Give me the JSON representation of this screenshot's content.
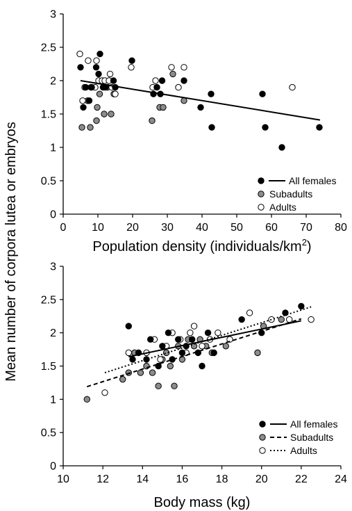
{
  "ylabel_shared": "Mean number of corpora lutea or embryos",
  "colors": {
    "all_females": "#000000",
    "subadults": "#8c8c8c",
    "adults": "#ffffff",
    "outline": "#000000"
  },
  "chart_data": [
    {
      "type": "scatter",
      "xlabel": "Population density (individuals/km²)",
      "xlim": [
        0,
        80
      ],
      "ylim": [
        0,
        3
      ],
      "xticks": [
        0,
        10,
        20,
        30,
        40,
        50,
        60,
        70,
        80
      ],
      "yticks": [
        0,
        0.5,
        1,
        1.5,
        2,
        2.5,
        3
      ],
      "ytick_labels": [
        "0",
        "0.5",
        "1",
        "1.5",
        "2",
        "2.5",
        "3"
      ],
      "legend_position": "bottom-right",
      "series": [
        {
          "name": "All females",
          "marker": "filled-black",
          "line": "solid",
          "points": [
            [
              5,
              2.2
            ],
            [
              5.8,
              1.6
            ],
            [
              6.5,
              1.9
            ],
            [
              7.5,
              1.7
            ],
            [
              8.2,
              1.9
            ],
            [
              9.5,
              2.2
            ],
            [
              10.2,
              2.1
            ],
            [
              10.6,
              2.4
            ],
            [
              11.5,
              1.9
            ],
            [
              12.2,
              1.9
            ],
            [
              14.5,
              2.0
            ],
            [
              15.0,
              1.9
            ],
            [
              19.8,
              2.3
            ],
            [
              26.0,
              1.8
            ],
            [
              27.0,
              1.9
            ],
            [
              28.0,
              1.8
            ],
            [
              28.5,
              2.0
            ],
            [
              34.8,
              2.0
            ],
            [
              39.6,
              1.6
            ],
            [
              42.6,
              1.8
            ],
            [
              42.8,
              1.3
            ],
            [
              57.4,
              1.8
            ],
            [
              58.2,
              1.3
            ],
            [
              63.0,
              1.0
            ],
            [
              73.8,
              1.3
            ]
          ],
          "trend": {
            "x": [
              5,
              74
            ],
            "y": [
              2.0,
              1.41
            ]
          }
        },
        {
          "name": "Subadults",
          "marker": "filled-gray",
          "points": [
            [
              5.4,
              1.3
            ],
            [
              7.0,
              1.7
            ],
            [
              7.8,
              1.3
            ],
            [
              9.6,
              1.4
            ],
            [
              9.8,
              1.6
            ],
            [
              10.5,
              1.8
            ],
            [
              11.8,
              1.5
            ],
            [
              12.8,
              1.9
            ],
            [
              13.8,
              1.5
            ],
            [
              14.6,
              1.8
            ],
            [
              25.6,
              1.4
            ],
            [
              27.8,
              1.6
            ],
            [
              28.8,
              1.6
            ],
            [
              31.6,
              2.1
            ],
            [
              34.8,
              1.7
            ]
          ]
        },
        {
          "name": "Adults",
          "marker": "open",
          "points": [
            [
              4.8,
              2.4
            ],
            [
              5.6,
              1.7
            ],
            [
              6.2,
              1.9
            ],
            [
              7.2,
              2.3
            ],
            [
              8.0,
              1.9
            ],
            [
              9.2,
              1.9
            ],
            [
              9.6,
              2.3
            ],
            [
              10.2,
              2.0
            ],
            [
              11.2,
              2.0
            ],
            [
              12.0,
              2.0
            ],
            [
              13.2,
              2.0
            ],
            [
              13.5,
              2.1
            ],
            [
              14.0,
              1.9
            ],
            [
              15.0,
              1.8
            ],
            [
              19.6,
              2.2
            ],
            [
              25.8,
              1.9
            ],
            [
              26.6,
              2.0
            ],
            [
              31.2,
              2.2
            ],
            [
              33.2,
              1.9
            ],
            [
              34.8,
              2.2
            ],
            [
              66.0,
              1.9
            ]
          ]
        }
      ]
    },
    {
      "type": "scatter",
      "xlabel": "Body mass (kg)",
      "xlim": [
        10,
        24
      ],
      "ylim": [
        0,
        3
      ],
      "xticks": [
        10,
        12,
        14,
        16,
        18,
        20,
        22,
        24
      ],
      "yticks": [
        0,
        0.5,
        1,
        1.5,
        2,
        2.5,
        3
      ],
      "ytick_labels": [
        "0",
        "0.5",
        "1",
        "1.5",
        "2",
        "2.5",
        "3"
      ],
      "legend_position": "bottom-right",
      "series": [
        {
          "name": "All females",
          "marker": "filled-black",
          "line": "solid",
          "points": [
            [
              13.3,
              2.1
            ],
            [
              13.5,
              1.6
            ],
            [
              13.8,
              1.7
            ],
            [
              14.2,
              1.6
            ],
            [
              14.4,
              1.9
            ],
            [
              14.8,
              1.5
            ],
            [
              15.0,
              1.8
            ],
            [
              15.3,
              2.0
            ],
            [
              15.5,
              1.6
            ],
            [
              15.8,
              1.9
            ],
            [
              16.0,
              1.7
            ],
            [
              16.2,
              1.8
            ],
            [
              16.5,
              1.9
            ],
            [
              16.8,
              1.7
            ],
            [
              17.0,
              1.5
            ],
            [
              17.3,
              2.0
            ],
            [
              17.6,
              1.7
            ],
            [
              19.0,
              2.2
            ],
            [
              20.0,
              2.0
            ],
            [
              21.2,
              2.3
            ],
            [
              22.0,
              2.4
            ]
          ],
          "trend": {
            "x": [
              13.3,
              22
            ],
            "y": [
              1.64,
              2.18
            ]
          }
        },
        {
          "name": "Subadults",
          "marker": "filled-gray",
          "line": "dashed",
          "points": [
            [
              11.2,
              1.0
            ],
            [
              13.0,
              1.3
            ],
            [
              13.3,
              1.4
            ],
            [
              13.6,
              1.7
            ],
            [
              13.9,
              1.4
            ],
            [
              14.2,
              1.5
            ],
            [
              14.5,
              1.4
            ],
            [
              14.8,
              1.2
            ],
            [
              15.0,
              1.6
            ],
            [
              15.2,
              1.7
            ],
            [
              15.4,
              1.5
            ],
            [
              15.6,
              1.2
            ],
            [
              15.8,
              1.8
            ],
            [
              16.0,
              1.6
            ],
            [
              16.3,
              1.9
            ],
            [
              16.6,
              1.8
            ],
            [
              16.9,
              1.9
            ],
            [
              17.2,
              1.8
            ],
            [
              17.5,
              1.7
            ],
            [
              18.2,
              1.8
            ],
            [
              19.8,
              1.7
            ],
            [
              20.1,
              2.1
            ],
            [
              21.0,
              2.2
            ]
          ],
          "trend": {
            "x": [
              11.2,
              22
            ],
            "y": [
              1.19,
              2.21
            ]
          }
        },
        {
          "name": "Adults",
          "marker": "open",
          "line": "dotted",
          "points": [
            [
              12.1,
              1.1
            ],
            [
              13.3,
              1.7
            ],
            [
              14.2,
              1.7
            ],
            [
              14.6,
              1.9
            ],
            [
              14.9,
              1.6
            ],
            [
              15.2,
              1.8
            ],
            [
              15.5,
              2.0
            ],
            [
              15.9,
              1.9
            ],
            [
              16.2,
              1.7
            ],
            [
              16.4,
              2.0
            ],
            [
              16.6,
              2.1
            ],
            [
              17.0,
              1.8
            ],
            [
              17.4,
              1.9
            ],
            [
              17.8,
              2.0
            ],
            [
              18.4,
              1.9
            ],
            [
              19.4,
              2.3
            ],
            [
              20.5,
              2.2
            ],
            [
              21.4,
              2.2
            ],
            [
              22.5,
              2.2
            ]
          ],
          "trend": {
            "x": [
              12.1,
              22.5
            ],
            "y": [
              1.4,
              2.39
            ]
          }
        }
      ]
    }
  ]
}
